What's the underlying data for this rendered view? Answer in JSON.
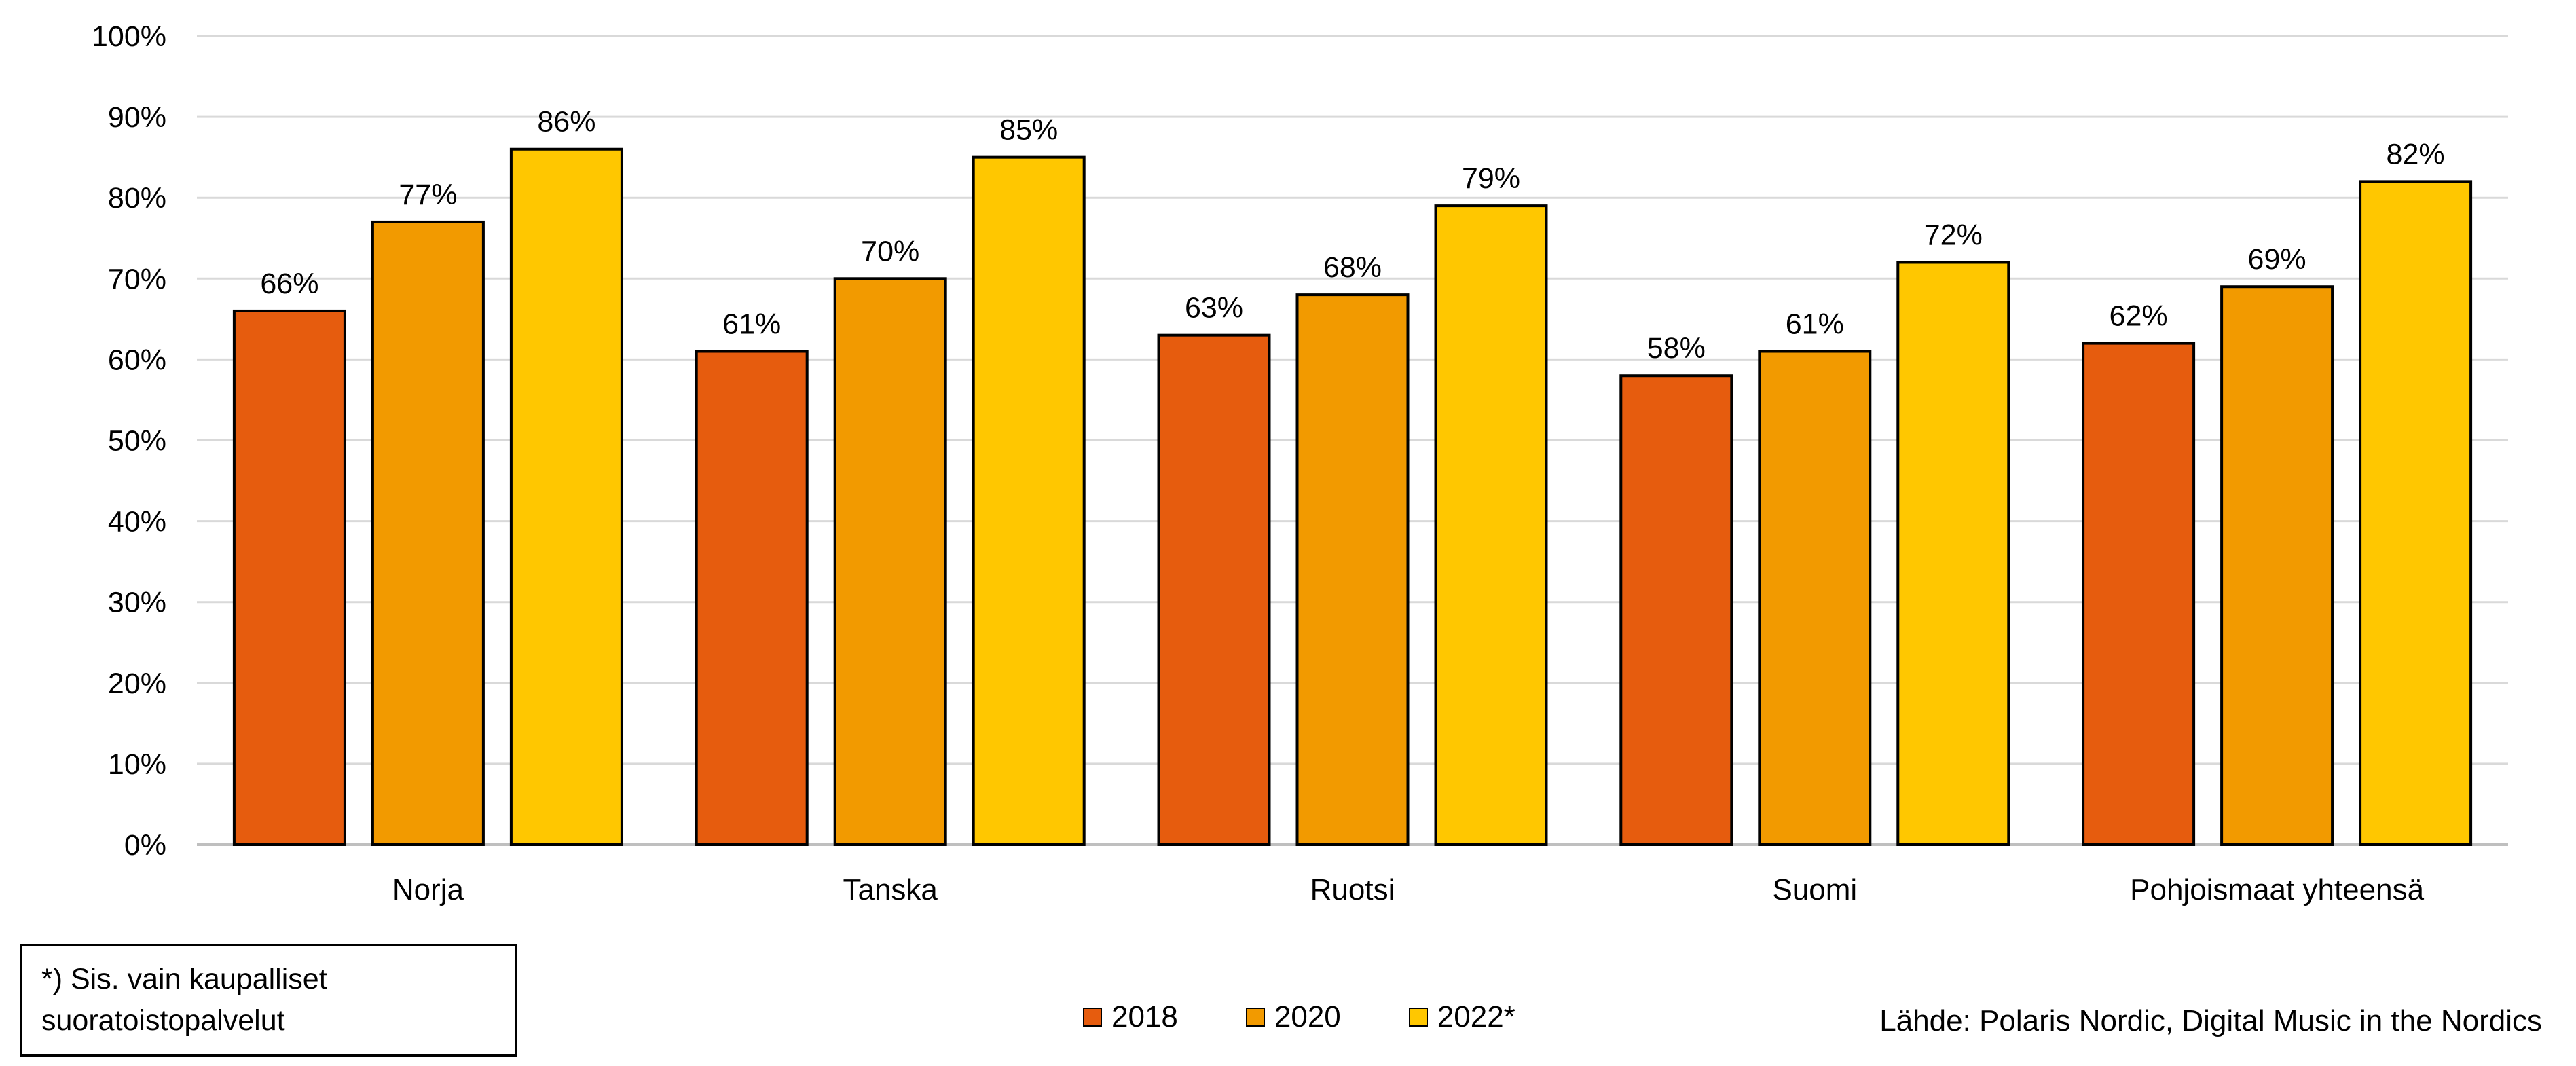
{
  "chart_data": {
    "type": "bar",
    "categories": [
      "Norja",
      "Tanska",
      "Ruotsi",
      "Suomi",
      "Pohjoismaat yhteensä"
    ],
    "series": [
      {
        "name": "2018",
        "color": "#E65C0E",
        "values": [
          66,
          61,
          63,
          58,
          62
        ]
      },
      {
        "name": "2020",
        "color": "#F29A00",
        "values": [
          77,
          70,
          68,
          61,
          69
        ]
      },
      {
        "name": "2022*",
        "color": "#FFC700",
        "values": [
          86,
          85,
          79,
          72,
          82
        ]
      }
    ],
    "ylim": [
      0,
      100
    ],
    "y_ticks": [
      "0%",
      "10%",
      "20%",
      "30%",
      "40%",
      "50%",
      "60%",
      "70%",
      "80%",
      "90%",
      "100%"
    ],
    "value_format": "percent",
    "grid": true,
    "legend_position": "bottom-center",
    "title": "",
    "xlabel": "",
    "ylabel": ""
  },
  "note": {
    "line1": "*) Sis. vain kaupalliset",
    "line2": "suoratoistopalvelut"
  },
  "source": "Lähde: Polaris Nordic, Digital Music in the Nordics"
}
